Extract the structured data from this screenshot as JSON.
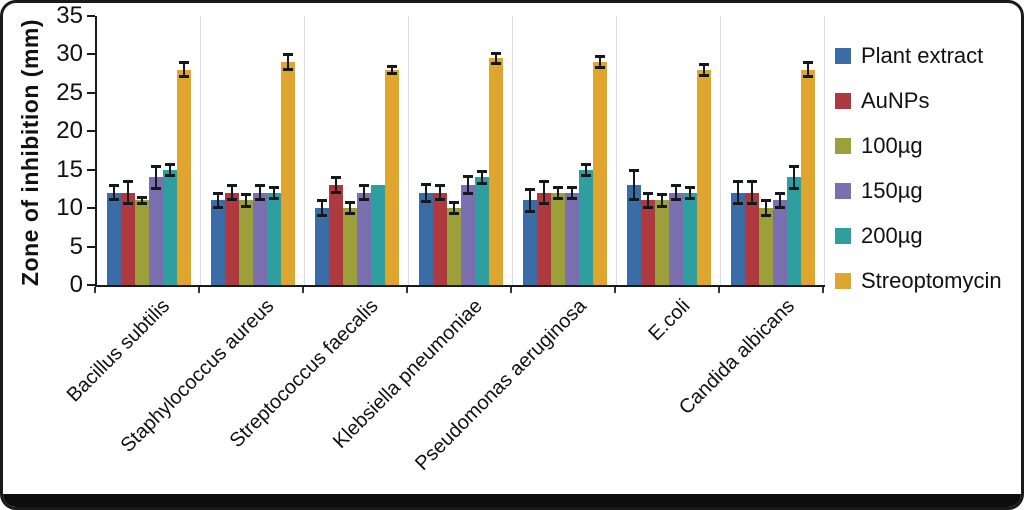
{
  "frame": {
    "border_color": "#1a1a1a",
    "background": "#ffffff"
  },
  "chart_data": {
    "type": "bar",
    "title": "",
    "xlabel": "",
    "ylabel": "Zone of inhibition (mm)",
    "ylim": [
      0,
      35
    ],
    "yticks": [
      0,
      5,
      10,
      15,
      20,
      25,
      30,
      35
    ],
    "grid": false,
    "group_separator_lines": true,
    "legend_position": "right",
    "error_bars": true,
    "error_bar_color": "#14181f",
    "categories": [
      "Bacillus subtilis",
      "Staphylococcus aureus",
      "Streptococcus faecalis",
      "Klebsiella pneumoniae",
      "Pseudomonas aeruginosa",
      "E.coli",
      "Candida albicans"
    ],
    "series": [
      {
        "name": "Plant extract",
        "color": "#3A6DA6",
        "values": [
          12,
          11,
          10,
          12,
          11,
          13,
          12
        ],
        "errors": [
          1,
          1,
          1,
          1.2,
          1.5,
          2,
          1.5
        ]
      },
      {
        "name": "AuNPs",
        "color": "#AC3A3E",
        "values": [
          12,
          12,
          13,
          12,
          12,
          11,
          12
        ],
        "errors": [
          1.5,
          1,
          1,
          1,
          1.5,
          1,
          1.5
        ]
      },
      {
        "name": "100µg",
        "color": "#9DA03A",
        "values": [
          11,
          11,
          10,
          10,
          12,
          11,
          10
        ],
        "errors": [
          0.5,
          0.8,
          0.8,
          0.8,
          0.8,
          0.8,
          1
        ]
      },
      {
        "name": "150µg",
        "color": "#7A70B0",
        "values": [
          14,
          12,
          12,
          13,
          12,
          12,
          11
        ],
        "errors": [
          1.5,
          1,
          1,
          1.2,
          0.8,
          1,
          1
        ]
      },
      {
        "name": "200µg",
        "color": "#2F9E9E",
        "values": [
          15,
          12,
          13,
          14,
          15,
          12,
          14
        ],
        "errors": [
          0.8,
          0.8,
          0,
          0.8,
          0.8,
          0.8,
          1.5
        ]
      },
      {
        "name": "Streoptomycin",
        "color": "#DEA62F",
        "values": [
          28,
          29,
          28,
          29.5,
          29,
          28,
          28
        ],
        "errors": [
          1,
          1,
          0.5,
          0.7,
          0.8,
          0.8,
          1
        ]
      }
    ]
  }
}
